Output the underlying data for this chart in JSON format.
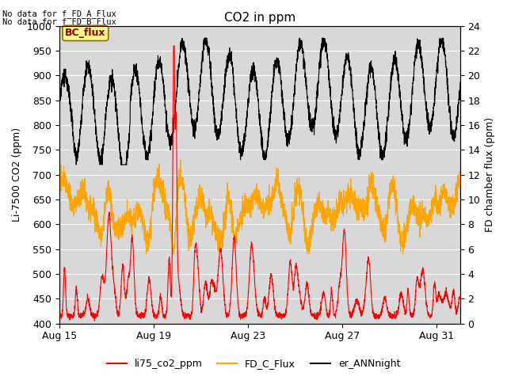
{
  "title": "CO2 in ppm",
  "ylabel_left": "Li-7500 CO2 (ppm)",
  "ylabel_right": "FD chamber flux (ppm)",
  "ylim_left": [
    400,
    1000
  ],
  "ylim_right": [
    0,
    24
  ],
  "annotation_line1": "No data for f_FD_A_Flux",
  "annotation_line2": "No data for f_FD_B_Flux",
  "bc_flux_label": "BC_flux",
  "legend_entries": [
    "li75_co2_ppm",
    "FD_C_Flux",
    "er_ANNnight"
  ],
  "legend_colors": [
    "#ff0000",
    "#ffa500",
    "#000000"
  ],
  "plot_bg_color": "#d8d8d8",
  "xtick_labels": [
    "Aug 15",
    "Aug 19",
    "Aug 23",
    "Aug 27",
    "Aug 31"
  ],
  "xtick_pos": [
    0,
    4,
    8,
    12,
    16
  ],
  "xlim": [
    0,
    17
  ],
  "ytick_left": [
    400,
    450,
    500,
    550,
    600,
    650,
    700,
    750,
    800,
    850,
    900,
    950,
    1000
  ],
  "ytick_right": [
    0,
    2,
    4,
    6,
    8,
    10,
    12,
    14,
    16,
    18,
    20,
    22,
    24
  ],
  "seed": 42,
  "n_points": 3000
}
